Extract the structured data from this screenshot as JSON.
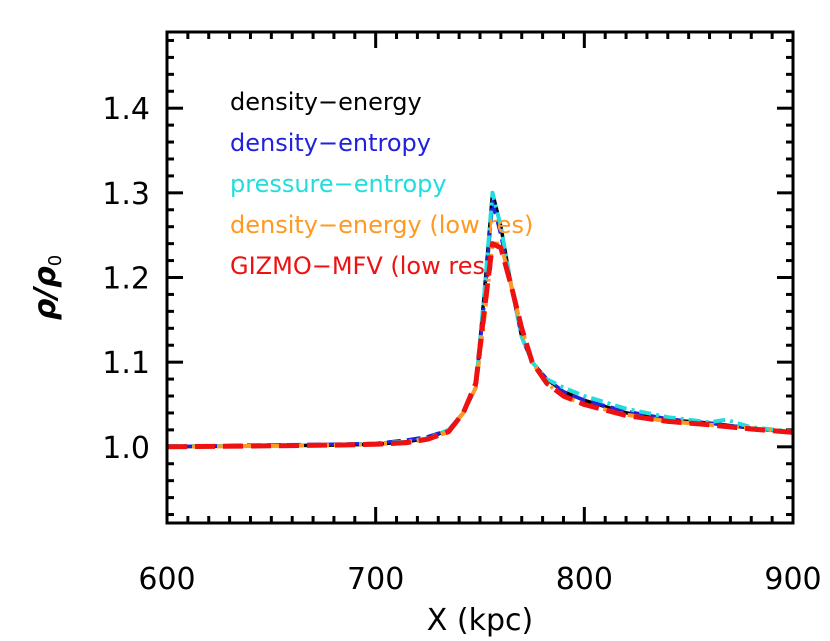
{
  "chart_data": {
    "type": "line",
    "xlabel": "X (kpc)",
    "ylabel": "ρ/ρ",
    "ylabel_subscript": "0",
    "xlim": [
      600,
      900
    ],
    "ylim": [
      0.91,
      1.49
    ],
    "xticks": [
      600,
      700,
      800,
      900
    ],
    "xtick_labels": [
      "600",
      "700",
      "800",
      "900"
    ],
    "yticks": [
      1.0,
      1.1,
      1.2,
      1.3,
      1.4
    ],
    "ytick_labels": [
      "1.0",
      "1.1",
      "1.2",
      "1.3",
      "1.4"
    ],
    "grid": false,
    "legend_placement": "top-left",
    "series": [
      {
        "name": "density−energy",
        "color": "#000000",
        "style": "solid",
        "x": [
          600,
          640,
          680,
          700,
          715,
          725,
          735,
          742,
          748,
          752,
          756,
          760,
          765,
          770,
          775,
          782,
          790,
          800,
          820,
          840,
          860,
          880,
          900
        ],
        "y": [
          1.0,
          1.001,
          1.002,
          1.003,
          1.006,
          1.01,
          1.02,
          1.04,
          1.07,
          1.18,
          1.3,
          1.26,
          1.19,
          1.13,
          1.1,
          1.08,
          1.065,
          1.055,
          1.04,
          1.032,
          1.028,
          1.022,
          1.017
        ]
      },
      {
        "name": "density−entropy",
        "color": "#2222dd",
        "style": "dashed",
        "x": [
          600,
          640,
          680,
          700,
          715,
          725,
          735,
          742,
          748,
          752,
          756,
          760,
          765,
          770,
          775,
          782,
          790,
          800,
          820,
          840,
          860,
          880,
          900
        ],
        "y": [
          1.0,
          1.002,
          1.003,
          1.004,
          1.008,
          1.012,
          1.02,
          1.04,
          1.07,
          1.17,
          1.29,
          1.25,
          1.19,
          1.13,
          1.1,
          1.08,
          1.065,
          1.055,
          1.042,
          1.033,
          1.028,
          1.022,
          1.017
        ]
      },
      {
        "name": "pressure−entropy",
        "color": "#22dddd",
        "style": "dashdot",
        "x": [
          600,
          640,
          680,
          700,
          715,
          725,
          735,
          742,
          748,
          752,
          756,
          760,
          765,
          770,
          775,
          782,
          790,
          800,
          820,
          840,
          860,
          868,
          880,
          900
        ],
        "y": [
          1.001,
          1.001,
          1.002,
          1.004,
          1.006,
          1.01,
          1.02,
          1.04,
          1.07,
          1.18,
          1.3,
          1.26,
          1.19,
          1.13,
          1.1,
          1.08,
          1.07,
          1.06,
          1.045,
          1.035,
          1.029,
          1.032,
          1.023,
          1.018
        ]
      },
      {
        "name": "density−energy (low res)",
        "color": "#ff9922",
        "style": "dashdot",
        "x": [
          600,
          640,
          680,
          700,
          715,
          725,
          735,
          742,
          748,
          752,
          756,
          760,
          765,
          770,
          775,
          782,
          790,
          800,
          820,
          840,
          860,
          880,
          900
        ],
        "y": [
          1.0,
          1.001,
          1.002,
          1.003,
          1.005,
          1.009,
          1.018,
          1.04,
          1.07,
          1.15,
          1.24,
          1.24,
          1.19,
          1.14,
          1.1,
          1.075,
          1.06,
          1.05,
          1.038,
          1.03,
          1.026,
          1.022,
          1.017
        ]
      },
      {
        "name": "GIZMO−MFV (low res)",
        "color": "#ee1111",
        "style": "longdash",
        "x": [
          600,
          640,
          680,
          700,
          715,
          725,
          735,
          742,
          748,
          752,
          756,
          760,
          765,
          770,
          775,
          782,
          790,
          800,
          820,
          840,
          860,
          880,
          900
        ],
        "y": [
          1.0,
          1.001,
          1.002,
          1.003,
          1.005,
          1.009,
          1.018,
          1.04,
          1.075,
          1.16,
          1.24,
          1.235,
          1.19,
          1.14,
          1.1,
          1.075,
          1.06,
          1.05,
          1.037,
          1.03,
          1.026,
          1.021,
          1.017
        ]
      }
    ]
  }
}
